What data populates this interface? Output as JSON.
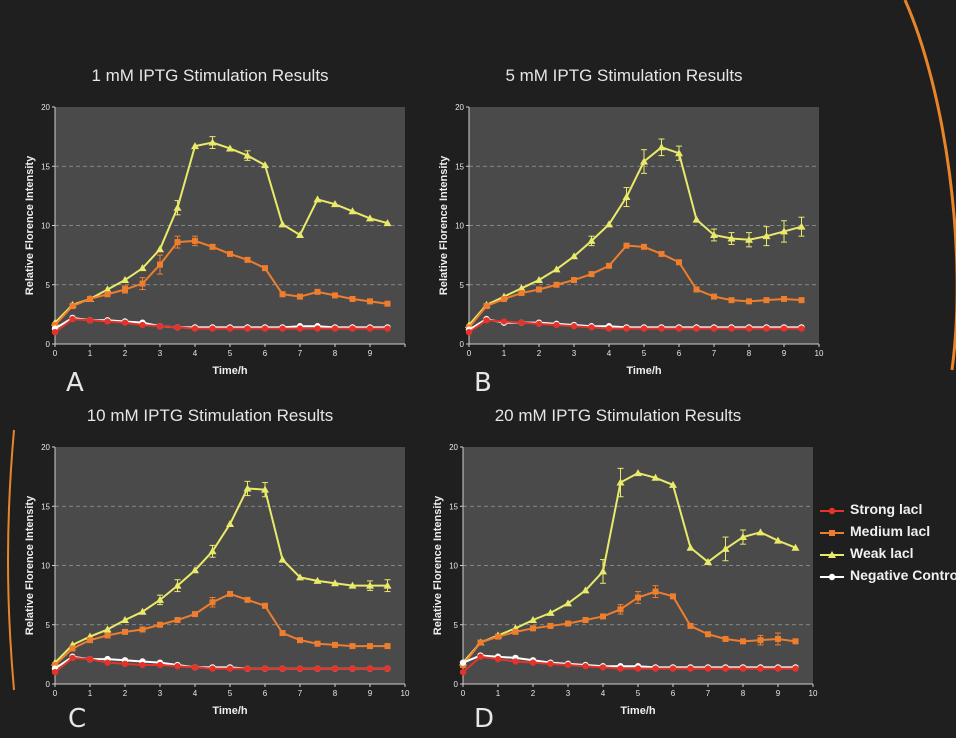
{
  "colors": {
    "background": "#1f1f1f",
    "plot_area": "#4a4a4a",
    "gridline": "#9a9a9a",
    "accent_arc": "#e8842a",
    "text": "#e6e6e6"
  },
  "legend": {
    "items": [
      {
        "label": "Strong lacl",
        "color": "#e5332a",
        "marker": "circle"
      },
      {
        "label": "Medium lacl",
        "color": "#ee7d2e",
        "marker": "square"
      },
      {
        "label": "Weak lacl",
        "color": "#eaea6a",
        "marker": "triangle"
      },
      {
        "label": "Negative Control",
        "color": "#ffffff",
        "marker": "circle"
      }
    ]
  },
  "chart_data": [
    {
      "type": "line",
      "panel_letter": "A",
      "title": "1 mM IPTG Stimulation Results",
      "xlabel": "Time/h",
      "ylabel": "Relative Florence Intensity",
      "xlim": [
        0,
        10
      ],
      "ylim": [
        0,
        20
      ],
      "xticks": [
        0,
        1,
        2,
        3,
        4,
        5,
        6,
        7,
        8,
        9,
        10
      ],
      "xtick_labels": [
        "0",
        "1",
        "2",
        "3",
        "4",
        "5",
        "6",
        "7",
        "8",
        "9",
        ""
      ],
      "yticks": [
        0,
        5,
        10,
        15,
        20
      ],
      "grid": "horizontal dashed",
      "x": [
        0,
        0.5,
        1,
        1.5,
        2,
        2.5,
        3,
        3.5,
        4,
        4.5,
        5,
        5.5,
        6,
        6.5,
        7,
        7.5,
        8,
        8.5,
        9,
        9.5
      ],
      "series": [
        {
          "name": "Weak lacl",
          "values": [
            1.8,
            3.3,
            3.8,
            4.6,
            5.4,
            6.4,
            8.0,
            11.5,
            16.7,
            17.0,
            16.5,
            15.9,
            15.1,
            10.1,
            9.2,
            12.2,
            11.8,
            11.2,
            10.6,
            10.2
          ],
          "errors": [
            0,
            0,
            0,
            0,
            0,
            0,
            0,
            0.6,
            0,
            0.5,
            0,
            0.4,
            0,
            0,
            0,
            0,
            0,
            0,
            0,
            0
          ]
        },
        {
          "name": "Medium lacl",
          "values": [
            1.6,
            3.2,
            3.8,
            4.2,
            4.6,
            5.1,
            6.7,
            8.6,
            8.7,
            8.2,
            7.6,
            7.1,
            6.4,
            4.2,
            4.0,
            4.4,
            4.1,
            3.8,
            3.6,
            3.4
          ],
          "errors": [
            0,
            0,
            0,
            0,
            0.3,
            0.5,
            0.8,
            0.5,
            0.4,
            0,
            0,
            0,
            0,
            0,
            0,
            0,
            0,
            0,
            0,
            0
          ]
        },
        {
          "name": "Negative Control",
          "values": [
            1.3,
            2.2,
            2.0,
            2.0,
            1.9,
            1.8,
            1.5,
            1.4,
            1.4,
            1.4,
            1.4,
            1.4,
            1.4,
            1.4,
            1.5,
            1.5,
            1.4,
            1.4,
            1.4,
            1.4
          ],
          "errors": [
            0,
            0,
            0,
            0,
            0,
            0,
            0,
            0,
            0,
            0,
            0,
            0,
            0,
            0,
            0,
            0,
            0,
            0,
            0,
            0
          ]
        },
        {
          "name": "Strong lacl",
          "values": [
            1.0,
            2.1,
            2.0,
            1.9,
            1.8,
            1.6,
            1.5,
            1.4,
            1.3,
            1.3,
            1.3,
            1.3,
            1.3,
            1.3,
            1.3,
            1.3,
            1.3,
            1.3,
            1.3,
            1.3
          ],
          "errors": [
            0,
            0,
            0,
            0,
            0,
            0,
            0,
            0,
            0,
            0,
            0,
            0,
            0,
            0,
            0,
            0,
            0,
            0,
            0,
            0
          ]
        }
      ]
    },
    {
      "type": "line",
      "panel_letter": "B",
      "title": "5 mM IPTG Stimulation Results",
      "xlabel": "Time/h",
      "ylabel": "Relative Florence Intensity",
      "xlim": [
        0,
        10
      ],
      "ylim": [
        0,
        20
      ],
      "xticks": [
        0,
        1,
        2,
        3,
        4,
        5,
        6,
        7,
        8,
        9,
        10
      ],
      "xtick_labels": [
        "0",
        "1",
        "2",
        "3",
        "4",
        "5",
        "6",
        "7",
        "8",
        "9",
        "10"
      ],
      "yticks": [
        0,
        5,
        10,
        15,
        20
      ],
      "grid": "horizontal dashed",
      "x": [
        0,
        0.5,
        1,
        1.5,
        2,
        2.5,
        3,
        3.5,
        4,
        4.5,
        5,
        5.5,
        6,
        6.5,
        7,
        7.5,
        8,
        8.5,
        9,
        9.5
      ],
      "series": [
        {
          "name": "Weak lacl",
          "values": [
            1.6,
            3.3,
            4.0,
            4.7,
            5.4,
            6.3,
            7.4,
            8.7,
            10.1,
            12.4,
            15.4,
            16.6,
            16.1,
            10.5,
            9.2,
            8.9,
            8.8,
            9.1,
            9.5,
            9.9
          ],
          "errors": [
            0,
            0,
            0,
            0,
            0,
            0,
            0,
            0.4,
            0,
            0.8,
            1.0,
            0.7,
            0.6,
            0,
            0.5,
            0.5,
            0.6,
            0.8,
            0.9,
            0.8
          ]
        },
        {
          "name": "Medium lacl",
          "values": [
            1.4,
            3.2,
            3.8,
            4.3,
            4.6,
            5.0,
            5.4,
            5.9,
            6.6,
            8.3,
            8.2,
            7.6,
            6.9,
            4.6,
            4.0,
            3.7,
            3.6,
            3.7,
            3.8,
            3.7
          ],
          "errors": [
            0,
            0,
            0,
            0,
            0,
            0,
            0,
            0,
            0,
            0,
            0,
            0,
            0,
            0,
            0,
            0,
            0,
            0,
            0,
            0
          ]
        },
        {
          "name": "Negative Control",
          "values": [
            1.2,
            2.1,
            1.8,
            1.8,
            1.8,
            1.7,
            1.6,
            1.5,
            1.5,
            1.4,
            1.4,
            1.4,
            1.4,
            1.4,
            1.4,
            1.4,
            1.4,
            1.4,
            1.4,
            1.4
          ],
          "errors": [
            0,
            0,
            0,
            0,
            0,
            0,
            0,
            0,
            0,
            0,
            0,
            0,
            0,
            0,
            0,
            0,
            0,
            0,
            0,
            0
          ]
        },
        {
          "name": "Strong lacl",
          "values": [
            1.0,
            2.0,
            1.9,
            1.8,
            1.7,
            1.6,
            1.5,
            1.4,
            1.3,
            1.3,
            1.3,
            1.3,
            1.3,
            1.3,
            1.3,
            1.3,
            1.3,
            1.3,
            1.3,
            1.3
          ],
          "errors": [
            0,
            0,
            0,
            0,
            0,
            0,
            0,
            0,
            0,
            0,
            0,
            0,
            0,
            0,
            0,
            0,
            0,
            0,
            0,
            0
          ]
        }
      ]
    },
    {
      "type": "line",
      "panel_letter": "C",
      "title": "10 mM IPTG Stimulation Results",
      "xlabel": "Time/h",
      "ylabel": "Relative Florence Intensity",
      "xlim": [
        0,
        10
      ],
      "ylim": [
        0,
        20
      ],
      "xticks": [
        0,
        1,
        2,
        3,
        4,
        5,
        6,
        7,
        8,
        9,
        10
      ],
      "xtick_labels": [
        "0",
        "1",
        "2",
        "3",
        "4",
        "5",
        "6",
        "7",
        "8",
        "9",
        "10"
      ],
      "yticks": [
        0,
        5,
        10,
        15,
        20
      ],
      "grid": "horizontal dashed",
      "x": [
        0,
        0.5,
        1,
        1.5,
        2,
        2.5,
        3,
        3.5,
        4,
        4.5,
        5,
        5.5,
        6,
        6.5,
        7,
        7.5,
        8,
        8.5,
        9,
        9.5
      ],
      "series": [
        {
          "name": "Weak lacl",
          "values": [
            1.8,
            3.3,
            4.0,
            4.6,
            5.4,
            6.1,
            7.1,
            8.3,
            9.6,
            11.2,
            13.5,
            16.5,
            16.4,
            10.5,
            9.0,
            8.7,
            8.5,
            8.3,
            8.3,
            8.3
          ],
          "errors": [
            0,
            0,
            0,
            0,
            0,
            0,
            0.4,
            0.5,
            0,
            0.5,
            0,
            0.6,
            0.6,
            0,
            0,
            0,
            0,
            0,
            0.4,
            0.5
          ]
        },
        {
          "name": "Medium lacl",
          "values": [
            1.6,
            3.0,
            3.7,
            4.1,
            4.4,
            4.6,
            5.0,
            5.4,
            5.9,
            6.9,
            7.6,
            7.1,
            6.6,
            4.3,
            3.7,
            3.4,
            3.3,
            3.2,
            3.2,
            3.2
          ],
          "errors": [
            0,
            0,
            0,
            0,
            0,
            0,
            0,
            0,
            0,
            0.4,
            0,
            0,
            0,
            0,
            0,
            0,
            0,
            0,
            0,
            0
          ]
        },
        {
          "name": "Negative Control",
          "values": [
            1.3,
            2.3,
            2.1,
            2.1,
            2.0,
            1.9,
            1.8,
            1.6,
            1.4,
            1.4,
            1.4,
            1.3,
            1.3,
            1.3,
            1.3,
            1.3,
            1.3,
            1.3,
            1.3,
            1.3
          ],
          "errors": [
            0,
            0,
            0,
            0,
            0,
            0,
            0,
            0,
            0,
            0,
            0,
            0,
            0,
            0,
            0,
            0,
            0,
            0,
            0,
            0
          ]
        },
        {
          "name": "Strong lacl",
          "values": [
            1.0,
            2.2,
            2.1,
            1.8,
            1.7,
            1.6,
            1.6,
            1.5,
            1.4,
            1.3,
            1.3,
            1.3,
            1.3,
            1.3,
            1.3,
            1.3,
            1.3,
            1.3,
            1.3,
            1.3
          ],
          "errors": [
            0,
            0,
            0,
            0,
            0,
            0,
            0,
            0,
            0,
            0,
            0,
            0,
            0,
            0,
            0,
            0,
            0,
            0,
            0,
            0
          ]
        }
      ]
    },
    {
      "type": "line",
      "panel_letter": "D",
      "title": "20 mM IPTG Stimulation Results",
      "xlabel": "Time/h",
      "ylabel": "Relative Florence Intensity",
      "xlim": [
        0,
        10
      ],
      "ylim": [
        0,
        20
      ],
      "xticks": [
        0,
        1,
        2,
        3,
        4,
        5,
        6,
        7,
        8,
        9,
        10
      ],
      "xtick_labels": [
        "0",
        "1",
        "2",
        "3",
        "4",
        "5",
        "6",
        "7",
        "8",
        "9",
        "10"
      ],
      "yticks": [
        0,
        5,
        10,
        15,
        20
      ],
      "grid": "horizontal dashed",
      "x": [
        0,
        0.5,
        1,
        1.5,
        2,
        2.5,
        3,
        3.5,
        4,
        4.5,
        5,
        5.5,
        6,
        6.5,
        7,
        7.5,
        8,
        8.5,
        9,
        9.5
      ],
      "series": [
        {
          "name": "Weak lacl",
          "values": [
            1.8,
            3.5,
            4.1,
            4.7,
            5.4,
            6.0,
            6.8,
            7.9,
            9.5,
            17.0,
            17.8,
            17.4,
            16.8,
            11.5,
            10.3,
            11.4,
            12.4,
            12.8,
            12.1,
            11.5
          ],
          "errors": [
            0,
            0,
            0,
            0,
            0,
            0,
            0,
            0,
            1.0,
            1.2,
            0,
            0,
            0,
            0,
            0,
            1.0,
            0.6,
            0,
            0,
            0
          ]
        },
        {
          "name": "Medium lacl",
          "values": [
            1.6,
            3.5,
            4.0,
            4.4,
            4.7,
            4.9,
            5.1,
            5.4,
            5.7,
            6.3,
            7.3,
            7.8,
            7.4,
            4.9,
            4.2,
            3.8,
            3.6,
            3.7,
            3.8,
            3.6
          ],
          "errors": [
            0,
            0,
            0,
            0,
            0,
            0,
            0,
            0,
            0,
            0.4,
            0.5,
            0.5,
            0,
            0,
            0,
            0,
            0,
            0.4,
            0.5,
            0
          ]
        },
        {
          "name": "Negative Control",
          "values": [
            1.8,
            2.4,
            2.3,
            2.2,
            2.0,
            1.8,
            1.7,
            1.6,
            1.5,
            1.5,
            1.5,
            1.4,
            1.4,
            1.4,
            1.4,
            1.4,
            1.4,
            1.4,
            1.4,
            1.4
          ],
          "errors": [
            0,
            0,
            0,
            0,
            0,
            0,
            0,
            0,
            0,
            0,
            0,
            0,
            0,
            0,
            0,
            0,
            0,
            0,
            0,
            0
          ]
        },
        {
          "name": "Strong lacl",
          "values": [
            1.0,
            2.3,
            2.1,
            1.9,
            1.8,
            1.7,
            1.6,
            1.5,
            1.4,
            1.3,
            1.3,
            1.3,
            1.3,
            1.3,
            1.3,
            1.3,
            1.3,
            1.3,
            1.3,
            1.3
          ],
          "errors": [
            0,
            0,
            0,
            0,
            0,
            0,
            0,
            0,
            0,
            0,
            0,
            0,
            0,
            0,
            0,
            0,
            0,
            0,
            0,
            0
          ]
        }
      ]
    }
  ]
}
